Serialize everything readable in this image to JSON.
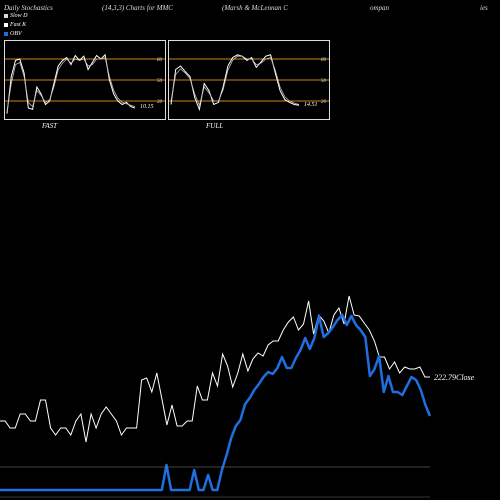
{
  "header": {
    "title": "Daily Stochastics",
    "params": "(14,3,3) Charts for MMC",
    "company": "(Marsh & McLennan  C",
    "company_rest": "ompan",
    "suffix": "ies"
  },
  "legend": [
    {
      "label": "Slow  D",
      "color": "#d9d9d9"
    },
    {
      "label": "Fast K",
      "color": "#ffffff"
    },
    {
      "label": "OBV",
      "color": "#1e6fe0"
    }
  ],
  "colors": {
    "background": "#000000",
    "grid_orange": "#c8861e",
    "obv": "#1e6fe0",
    "price": "#ffffff"
  },
  "chart_data": [
    {
      "type": "line",
      "name": "FAST",
      "ylim": [
        0,
        100
      ],
      "yticks": [
        20,
        50,
        80
      ],
      "last_value_label": "10.15",
      "series": [
        {
          "values": [
            2,
            55,
            78,
            80,
            60,
            10,
            8,
            40,
            30,
            15,
            20,
            45,
            70,
            78,
            82,
            72,
            85,
            78,
            84,
            65,
            75,
            85,
            80,
            86,
            50,
            30,
            20,
            15,
            18,
            12,
            10
          ]
        },
        {
          "values": [
            5,
            45,
            72,
            75,
            55,
            18,
            12,
            35,
            28,
            18,
            22,
            40,
            65,
            74,
            80,
            74,
            80,
            78,
            80,
            70,
            72,
            80,
            80,
            82,
            55,
            35,
            24,
            18,
            16,
            14,
            12
          ]
        }
      ]
    },
    {
      "type": "line",
      "name": "FULL",
      "ylim": [
        0,
        100
      ],
      "yticks": [
        20,
        50,
        80
      ],
      "last_value_label": "14.51",
      "series": [
        {
          "values": [
            15,
            65,
            70,
            62,
            55,
            25,
            8,
            45,
            35,
            15,
            18,
            40,
            70,
            82,
            86,
            84,
            78,
            82,
            68,
            76,
            84,
            86,
            60,
            35,
            22,
            18,
            15,
            14
          ]
        },
        {
          "values": [
            20,
            58,
            66,
            60,
            52,
            30,
            14,
            40,
            32,
            20,
            20,
            36,
            64,
            78,
            84,
            84,
            80,
            80,
            72,
            74,
            80,
            82,
            64,
            40,
            26,
            20,
            17,
            15
          ]
        }
      ]
    },
    {
      "type": "line",
      "name": "main",
      "close_label": "222.79Close",
      "price": [
        421,
        421,
        428,
        428,
        414,
        414,
        421,
        421,
        400,
        400,
        428,
        435,
        428,
        428,
        435,
        421,
        414,
        442,
        414,
        428,
        414,
        407,
        414,
        421,
        435,
        428,
        428,
        428,
        380,
        378,
        392,
        373,
        399,
        425,
        405,
        426,
        426,
        421,
        421,
        386,
        400,
        400,
        373,
        386,
        354,
        366,
        387,
        373,
        354,
        371,
        359,
        353,
        356,
        345,
        341,
        341,
        330,
        322,
        317,
        330,
        324,
        301,
        334,
        315,
        321,
        333,
        315,
        308,
        324,
        296,
        315,
        316,
        323,
        330,
        341,
        357,
        357,
        369,
        362,
        373,
        367,
        369,
        369,
        367,
        377,
        377
      ],
      "obv": [
        490,
        490,
        490,
        490,
        490,
        490,
        490,
        490,
        490,
        490,
        490,
        490,
        490,
        490,
        490,
        490,
        490,
        490,
        490,
        490,
        490,
        490,
        490,
        490,
        490,
        490,
        490,
        490,
        490,
        490,
        490,
        490,
        490,
        490,
        490,
        490,
        465,
        490,
        490,
        490,
        490,
        490,
        470,
        490,
        490,
        475,
        490,
        490,
        470,
        455,
        438,
        426,
        420,
        404,
        398,
        390,
        384,
        377,
        372,
        374,
        368,
        357,
        368,
        368,
        358,
        350,
        338,
        349,
        338,
        316,
        337,
        333,
        327,
        320,
        315,
        325,
        316,
        325,
        330,
        337,
        376,
        369,
        356,
        392,
        376,
        392,
        392,
        395,
        386,
        377,
        380,
        390,
        405,
        416
      ]
    }
  ]
}
